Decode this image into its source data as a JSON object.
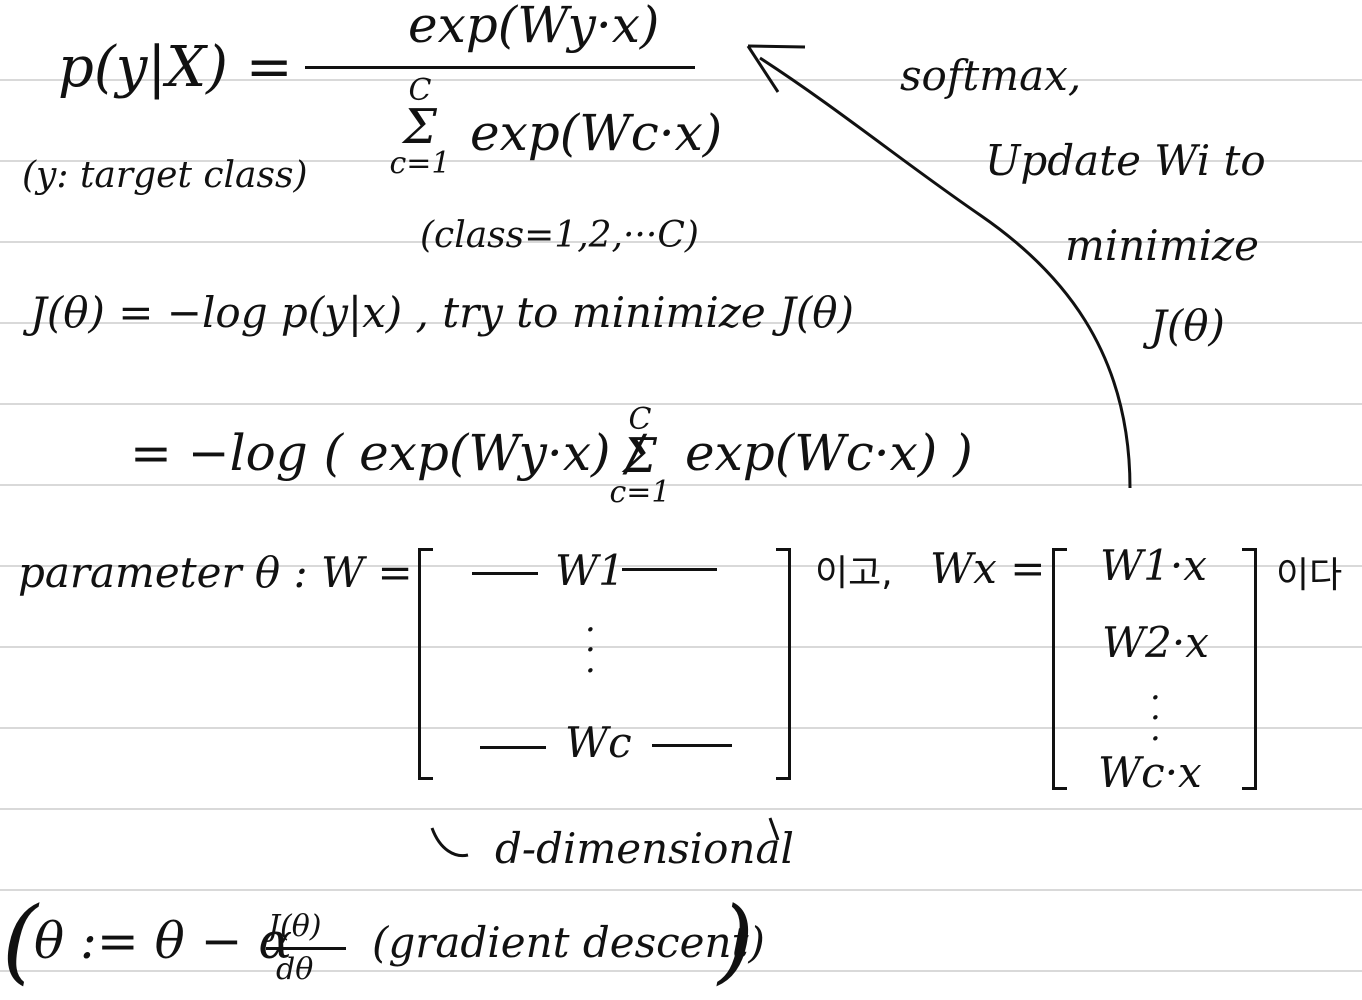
{
  "softmax": {
    "lhs": "p(y|X) =",
    "numerator": "exp(Wy·x)",
    "sum_top": "C",
    "sum_sigma": "Σ",
    "sum_bottom": "c=1",
    "denominator_term": "exp(Wc·x)",
    "target_note": "(y: target class)",
    "class_note": "(class=1,2,···C)"
  },
  "side_note": {
    "line1": "softmax,",
    "line2": "Update Wi to",
    "line3": "minimize",
    "line4": "J(θ)"
  },
  "loss": {
    "line1": "J(θ) = −log p(y|x) ,  try to minimize J(θ)",
    "line2_prefix": "= −log ( exp(Wy·x) /",
    "line2_sum_top": "C",
    "line2_sum_sigma": "Σ",
    "line2_sum_bottom": "c=1",
    "line2_suffix": "exp(Wc·x) )"
  },
  "matrix": {
    "label": "parameter θ :  W =",
    "row1": "W1",
    "row_last": "Wc",
    "after_W": "이고,",
    "wx_label": "Wx =",
    "wx_rows": [
      "W1·x",
      "W2·x",
      "Wc·x"
    ],
    "after_wx": "이다",
    "dimension_note": "d-dimensional"
  },
  "gradient": {
    "open": "(",
    "lhs": "θ := θ − α",
    "frac_num": "J(θ)",
    "frac_den": "dθ",
    "note": "(gradient descent)",
    "close": ")"
  }
}
